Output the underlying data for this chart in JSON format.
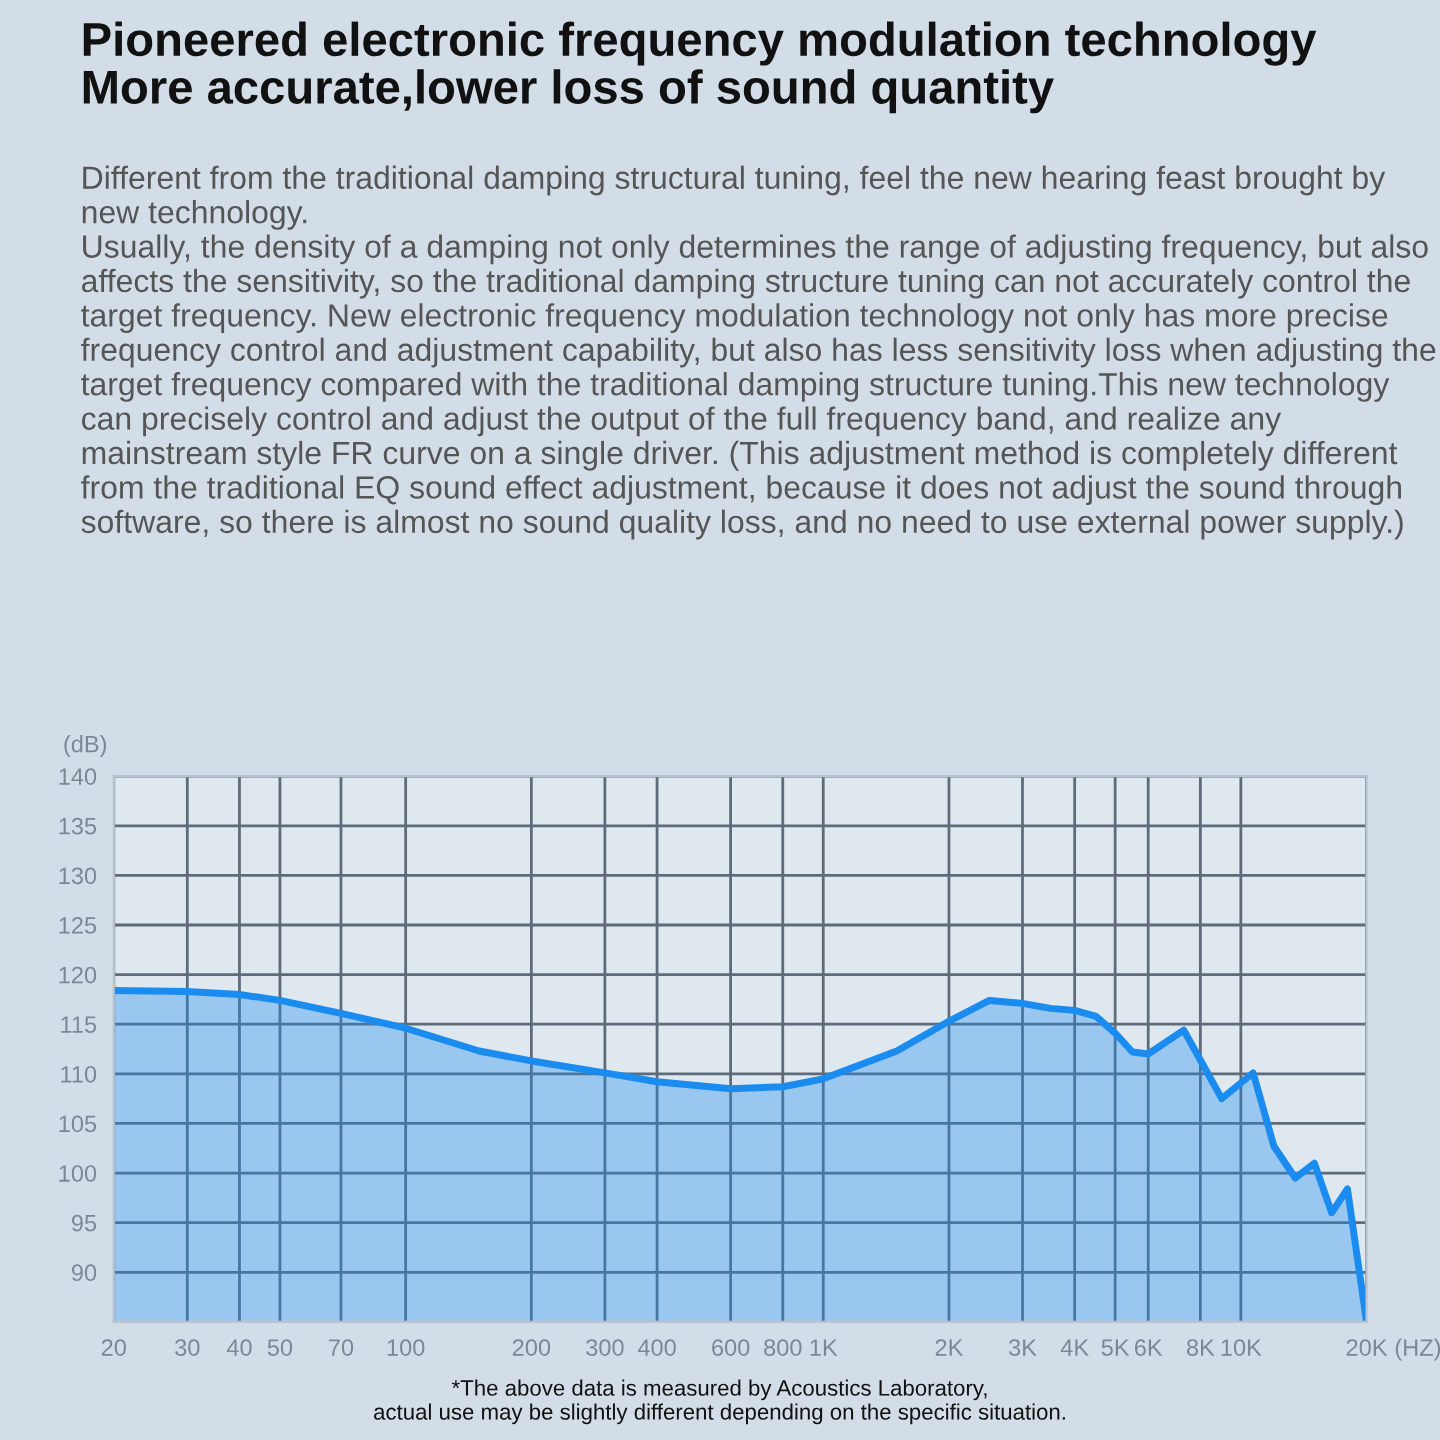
{
  "chart_data": {
    "type": "area",
    "title": "Pioneered electronic frequency modulation technology\nMore accurate,lower loss of sound quantity",
    "subtitle": "Different from the traditional damping structural tuning, feel the new hearing feast brought by new technology.\nUsually, the density of a damping not only determines the range of adjusting frequency, but also affects the sensitivity, so the traditional damping structure tuning can not accurately control the target frequency. New electronic frequency modulation technology not only has more precise frequency control and adjustment capability, but also has less sensitivity loss when adjusting the target frequency compared with the traditional damping structure tuning.This new technology can precisely control and adjust the output of the full frequency band, and realize any mainstream style FR curve on a single driver. (This adjustment method is completely different from the traditional EQ sound effect adjustment, because it does not adjust the sound through software, so there is almost no sound quality loss, and no need to use external power supply.)",
    "ylabel": "(dB)",
    "xlabel": "(HZ)",
    "annotations": [
      "*The above data is measured by Acoustics Laboratory,\nactual use may be slightly different depending on the specific situation."
    ],
    "log": "x",
    "grid": true,
    "legend": false,
    "xlim": [
      20,
      20000
    ],
    "ylim": [
      85,
      140
    ],
    "xticks": [
      20,
      30,
      40,
      50,
      70,
      100,
      200,
      300,
      400,
      600,
      800,
      {
        "value": 1000,
        "label": "1K"
      },
      {
        "value": 2000,
        "label": "2K"
      },
      {
        "value": 3000,
        "label": "3K"
      },
      {
        "value": 4000,
        "label": "4K"
      },
      {
        "value": 5000,
        "label": "5K"
      },
      {
        "value": 6000,
        "label": "6K"
      },
      {
        "value": 8000,
        "label": "8K"
      },
      {
        "value": 10000,
        "label": "10K"
      },
      {
        "value": 20000,
        "label": "20K"
      }
    ],
    "yticks": [
      90,
      95,
      100,
      105,
      110,
      115,
      120,
      125,
      130,
      135,
      140
    ],
    "x": [
      20,
      30,
      40,
      50,
      70,
      100,
      150,
      200,
      300,
      400,
      600,
      800,
      1000,
      1500,
      2000,
      2500,
      3000,
      3500,
      4000,
      4500,
      5000,
      5500,
      6000,
      7300,
      8000,
      9000,
      10700,
      12000,
      13500,
      15000,
      16500,
      18000,
      20000
    ],
    "series": [
      {
        "color": "#1a8cf0",
        "values": [
          118.4,
          118.3,
          118.0,
          117.4,
          116.1,
          114.6,
          112.3,
          111.3,
          110.1,
          109.2,
          108.5,
          108.7,
          109.5,
          112.3,
          115.3,
          117.4,
          117.1,
          116.6,
          116.4,
          115.8,
          114.1,
          112.2,
          112.0,
          114.4,
          111.4,
          107.5,
          110.1,
          102.7,
          99.5,
          101.0,
          96.0,
          98.4,
          85.0
        ]
      }
    ]
  }
}
